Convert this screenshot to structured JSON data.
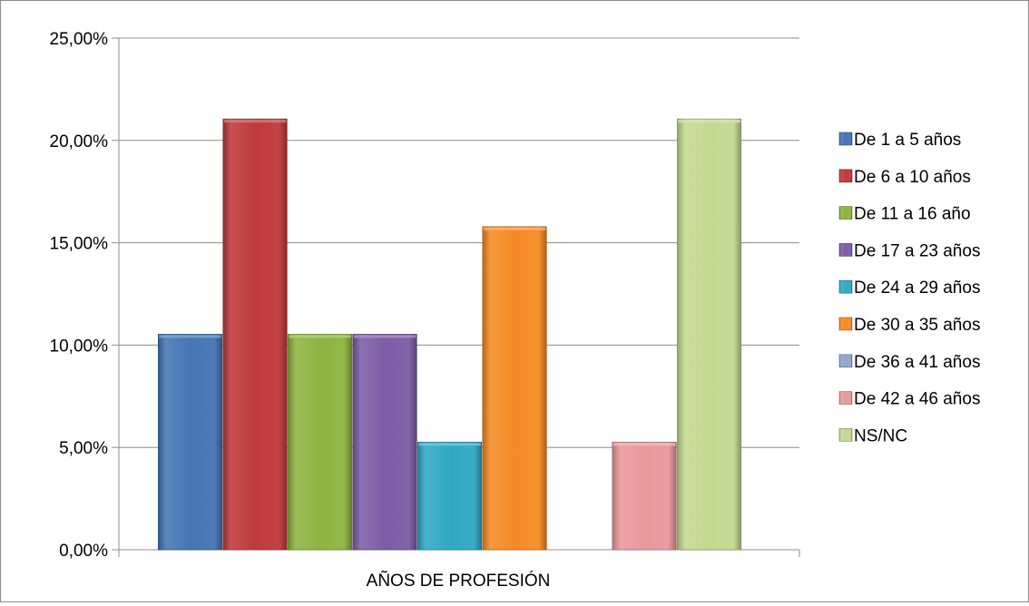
{
  "chart_data": {
    "type": "bar",
    "title": "",
    "xlabel": "AÑOS DE PROFESIÓN",
    "ylabel": "",
    "ylim": [
      0,
      25
    ],
    "y_ticks": [
      "0,00%",
      "5,00%",
      "10,00%",
      "15,00%",
      "20,00%",
      "25,00%"
    ],
    "y_tick_values": [
      0,
      5,
      10,
      15,
      20,
      25
    ],
    "y_unit": "%",
    "grid": true,
    "legend_position": "right",
    "categories": [
      "AÑOS DE PROFESIÓN"
    ],
    "series": [
      {
        "name": "De 1 a 5 años",
        "values": [
          10.53
        ],
        "color": "#4575b4"
      },
      {
        "name": "De 6 a 10 años",
        "values": [
          21.05
        ],
        "color": "#c0393b"
      },
      {
        "name": "De 11 a 16 año",
        "values": [
          10.53
        ],
        "color": "#8db43f"
      },
      {
        "name": "De 17 a 23 años",
        "values": [
          10.53
        ],
        "color": "#7e5ca6"
      },
      {
        "name": "De 24 a 29 años",
        "values": [
          5.26
        ],
        "color": "#30a9c4"
      },
      {
        "name": "De 30 a 35 años",
        "values": [
          15.79
        ],
        "color": "#f58a24"
      },
      {
        "name": "De 36 a 41 años",
        "values": [
          0
        ],
        "color": "#8fa5cf"
      },
      {
        "name": "De 42 a 46 años",
        "values": [
          5.26
        ],
        "color": "#e9999a"
      },
      {
        "name": "NS/NC",
        "values": [
          21.05
        ],
        "color": "#c3d98f"
      }
    ]
  }
}
